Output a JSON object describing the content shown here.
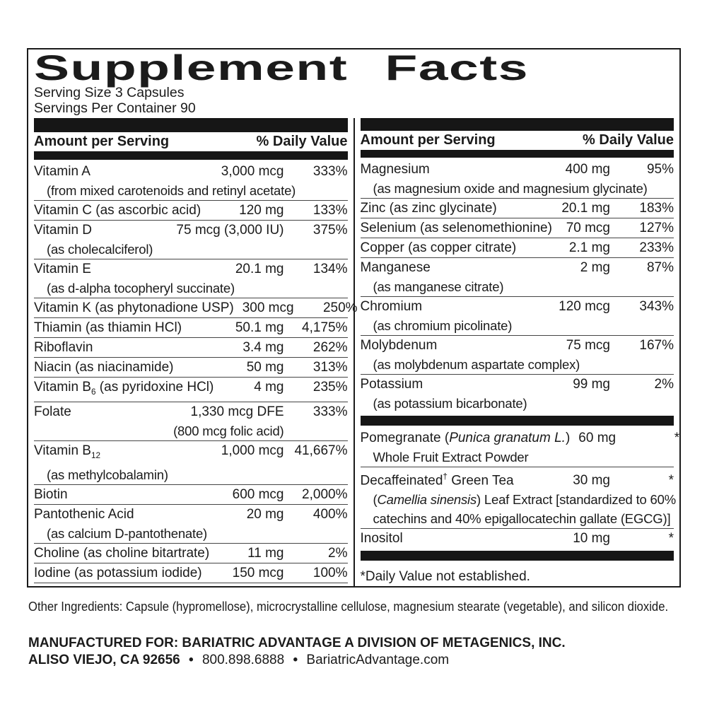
{
  "label": {
    "title": "Supplement Facts",
    "serving_size": "Serving Size 3 Capsules",
    "servings_per_container": "Servings Per Container 90",
    "column_header": {
      "amount": "Amount per Serving",
      "daily_value": "% Daily Value"
    },
    "colors": {
      "ink": "#1b1b1b",
      "bar": "#161616",
      "background": "#ffffff"
    },
    "columns": [
      {
        "items": [
          {
            "type": "row",
            "name": [
              {
                "t": "Vitamin A"
              }
            ],
            "amount": "3,000 mcg",
            "dv": "333%",
            "subs": [
              {
                "parts": [
                  {
                    "t": "(from mixed carotenoids and retinyl acetate)"
                  }
                ]
              }
            ]
          },
          {
            "type": "row",
            "name": [
              {
                "t": "Vitamin C (as ascorbic acid)"
              }
            ],
            "amount": "120 mg",
            "dv": "133%"
          },
          {
            "type": "row",
            "name": [
              {
                "t": "Vitamin D"
              }
            ],
            "amount": "75 mcg (3,000 IU)",
            "dv": "375%",
            "subs": [
              {
                "parts": [
                  {
                    "t": "(as cholecalciferol)"
                  }
                ]
              }
            ]
          },
          {
            "type": "row",
            "name": [
              {
                "t": "Vitamin E"
              }
            ],
            "amount": "20.1 mg",
            "dv": "134%",
            "subs": [
              {
                "parts": [
                  {
                    "t": "(as d-alpha tocopheryl succinate)"
                  }
                ]
              }
            ]
          },
          {
            "type": "row",
            "name": [
              {
                "t": "Vitamin K (as phytonadione USP)"
              }
            ],
            "amount": "300 mcg",
            "dv": "250%"
          },
          {
            "type": "row",
            "name": [
              {
                "t": "Thiamin (as thiamin HCl)"
              }
            ],
            "amount": "50.1 mg",
            "dv": "4,175%"
          },
          {
            "type": "row",
            "name": [
              {
                "t": "Riboflavin"
              }
            ],
            "amount": "3.4 mg",
            "dv": "262%"
          },
          {
            "type": "row",
            "name": [
              {
                "t": "Niacin (as niacinamide)"
              }
            ],
            "amount": "50 mg",
            "dv": "313%"
          },
          {
            "type": "row",
            "name": [
              {
                "t": "Vitamin B"
              },
              {
                "t": "6",
                "s": "sub"
              },
              {
                "t": " (as pyridoxine HCl)"
              }
            ],
            "amount": "4 mg",
            "dv": "235%"
          },
          {
            "type": "row",
            "name": [
              {
                "t": "Folate"
              }
            ],
            "amount": "1,330 mcg DFE",
            "dv": "333%",
            "subs": [
              {
                "parts": [
                  {
                    "t": "(800 mcg folic acid)"
                  }
                ],
                "align": "amount"
              }
            ]
          },
          {
            "type": "row",
            "name": [
              {
                "t": "Vitamin B"
              },
              {
                "t": "12",
                "s": "sub"
              }
            ],
            "amount": "1,000 mcg",
            "dv": "41,667%",
            "subs": [
              {
                "parts": [
                  {
                    "t": "(as methylcobalamin)"
                  }
                ]
              }
            ]
          },
          {
            "type": "row",
            "name": [
              {
                "t": "Biotin"
              }
            ],
            "amount": "600 mcg",
            "dv": "2,000%"
          },
          {
            "type": "row",
            "name": [
              {
                "t": "Pantothenic Acid"
              }
            ],
            "amount": "20 mg",
            "dv": "400%",
            "subs": [
              {
                "parts": [
                  {
                    "t": "(as calcium D-pantothenate)"
                  }
                ]
              }
            ]
          },
          {
            "type": "row",
            "name": [
              {
                "t": "Choline (as choline bitartrate)"
              }
            ],
            "amount": "11 mg",
            "dv": "2%"
          },
          {
            "type": "row",
            "name": [
              {
                "t": "Iodine (as potassium iodide)"
              }
            ],
            "amount": "150 mcg",
            "dv": "100%"
          }
        ]
      },
      {
        "items": [
          {
            "type": "row",
            "name": [
              {
                "t": "Magnesium"
              }
            ],
            "amount": "400 mg",
            "dv": "95%",
            "subs": [
              {
                "parts": [
                  {
                    "t": "(as magnesium oxide and magnesium glycinate)"
                  }
                ]
              }
            ]
          },
          {
            "type": "row",
            "name": [
              {
                "t": "Zinc (as zinc glycinate)"
              }
            ],
            "amount": "20.1 mg",
            "dv": "183%"
          },
          {
            "type": "row",
            "name": [
              {
                "t": "Selenium (as selenomethionine)"
              }
            ],
            "amount": "70 mcg",
            "dv": "127%"
          },
          {
            "type": "row",
            "name": [
              {
                "t": "Copper (as copper citrate)"
              }
            ],
            "amount": "2.1 mg",
            "dv": "233%"
          },
          {
            "type": "row",
            "name": [
              {
                "t": "Manganese"
              }
            ],
            "amount": "2 mg",
            "dv": "87%",
            "subs": [
              {
                "parts": [
                  {
                    "t": "(as manganese citrate)"
                  }
                ]
              }
            ]
          },
          {
            "type": "row",
            "name": [
              {
                "t": "Chromium"
              }
            ],
            "amount": "120 mcg",
            "dv": "343%",
            "subs": [
              {
                "parts": [
                  {
                    "t": "(as chromium picolinate)"
                  }
                ]
              }
            ]
          },
          {
            "type": "row",
            "name": [
              {
                "t": "Molybdenum"
              }
            ],
            "amount": "75 mcg",
            "dv": "167%",
            "subs": [
              {
                "parts": [
                  {
                    "t": "(as molybdenum aspartate complex)"
                  }
                ]
              }
            ]
          },
          {
            "type": "row",
            "name": [
              {
                "t": "Potassium"
              }
            ],
            "amount": "99 mg",
            "dv": "2%",
            "subs": [
              {
                "parts": [
                  {
                    "t": "(as potassium bicarbonate)"
                  }
                ]
              }
            ]
          },
          {
            "type": "bar"
          },
          {
            "type": "row",
            "name": [
              {
                "t": "Pomegranate ("
              },
              {
                "t": "Punica granatum L.",
                "s": "i"
              },
              {
                "t": ")"
              }
            ],
            "amount": "60 mg",
            "dv": "*",
            "subs": [
              {
                "parts": [
                  {
                    "t": "Whole Fruit Extract Powder"
                  }
                ]
              }
            ]
          },
          {
            "type": "row",
            "name": [
              {
                "t": "Decaffeinated"
              },
              {
                "t": "†",
                "s": "sup"
              },
              {
                "t": " Green Tea"
              }
            ],
            "amount": "30 mg",
            "dv": "*",
            "subs": [
              {
                "parts": [
                  {
                    "t": "("
                  },
                  {
                    "t": "Camellia sinensis",
                    "s": "i"
                  },
                  {
                    "t": ") Leaf Extract [standardized to 60%"
                  }
                ]
              },
              {
                "parts": [
                  {
                    "t": "catechins and 40% epigallocatechin gallate (EGCG)]"
                  }
                ]
              }
            ]
          },
          {
            "type": "row",
            "name": [
              {
                "t": "Inositol"
              }
            ],
            "amount": "10 mg",
            "dv": "*"
          },
          {
            "type": "bar"
          },
          {
            "type": "note",
            "text": "*Daily Value not established."
          }
        ]
      }
    ],
    "footer": {
      "other_ingredients": "Other Ingredients: Capsule (hypromellose), microcrystalline cellulose, magnesium stearate (vegetable), and silicon dioxide.",
      "manufactured_for": "MANUFACTURED FOR: BARIATRIC ADVANTAGE A DIVISION OF METAGENICS, INC.",
      "address": "ALISO VIEJO, CA 92656",
      "contact": "800.898.6888",
      "website": "BariatricAdvantage.com",
      "separator": "•"
    }
  }
}
